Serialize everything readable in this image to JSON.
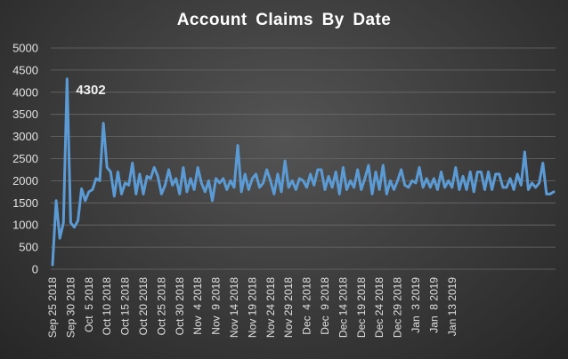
{
  "chart_data": {
    "type": "line",
    "title": "Account Claims By Date",
    "xlabel": "",
    "ylabel": "",
    "ylim": [
      0,
      5000
    ],
    "yticks": [
      0,
      500,
      1000,
      1500,
      2000,
      2500,
      3000,
      3500,
      4000,
      4500,
      5000
    ],
    "grid": true,
    "legend": "none",
    "line_color": "#5b9bd5",
    "tick_labels": [
      "Sep 25 2018",
      "Sep 30 2018",
      "Oct  5 2018",
      "Oct 10 2018",
      "Oct 15 2018",
      "Oct 20 2018",
      "Oct 25 2018",
      "Oct 30 2018",
      "Nov  4 2018",
      "Nov  9 2018",
      "Nov 14 2018",
      "Nov 19 2018",
      "Nov 24 2018",
      "Nov 29 2018",
      "Dec  4 2018",
      "Dec  9 2018",
      "Dec 14 2018",
      "Dec 19 2018",
      "Dec 24 2018",
      "Dec 29 2018",
      "Jan  3 2019",
      "Jan  8 2019",
      "Jan 13 2019"
    ],
    "start_date": "2018-09-25",
    "values": [
      100,
      1550,
      700,
      1050,
      4302,
      1050,
      950,
      1100,
      1820,
      1550,
      1750,
      1800,
      2050,
      2000,
      3300,
      2300,
      2200,
      1650,
      2200,
      1700,
      1950,
      1900,
      2400,
      1700,
      2150,
      1700,
      2100,
      2050,
      2300,
      2100,
      1700,
      1900,
      2250,
      1900,
      2050,
      1700,
      2300,
      1750,
      2050,
      1800,
      2300,
      1950,
      1750,
      2000,
      1550,
      2050,
      1950,
      2050,
      1800,
      2000,
      1850,
      2800,
      1750,
      2150,
      1800,
      2050,
      2150,
      1850,
      1950,
      2250,
      2000,
      1700,
      2150,
      1750,
      2450,
      1850,
      2000,
      1800,
      2050,
      2000,
      1850,
      2150,
      1900,
      2250,
      2250,
      1800,
      2100,
      1850,
      2200,
      1700,
      2300,
      1800,
      2000,
      1850,
      2250,
      1800,
      2050,
      2350,
      1700,
      2200,
      1800,
      2350,
      1700,
      2000,
      1800,
      2000,
      2250,
      1900,
      1850,
      2000,
      1950,
      2300,
      1850,
      2050,
      1850,
      2050,
      1800,
      2200,
      1850,
      2000,
      1850,
      2300,
      1800,
      2100,
      1800,
      2200,
      1750,
      2200,
      2200,
      1800,
      2200,
      1800,
      2150,
      2150,
      1850,
      1850,
      2050,
      1800,
      2150,
      1900,
      2650,
      1800,
      1950,
      1850,
      1950,
      2400,
      1700,
      1700,
      1750
    ],
    "annotations": [
      {
        "index": 4,
        "text": "4302"
      }
    ]
  }
}
